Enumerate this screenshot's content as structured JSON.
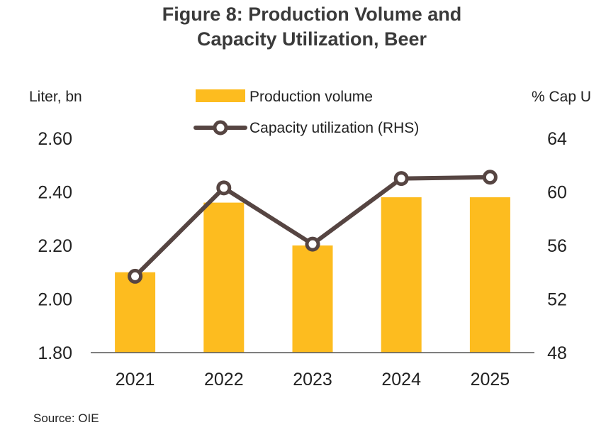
{
  "chart_data": {
    "type": "bar",
    "title_lines": [
      "Figure 8: Production Volume and",
      "Capacity Utilization, Beer"
    ],
    "left_axis_unit": "Liter, bn",
    "right_axis_unit": "% Cap U",
    "categories": [
      "2021",
      "2022",
      "2023",
      "2024",
      "2025"
    ],
    "left_axis": {
      "ylim": [
        1.8,
        2.6
      ],
      "ticks": [
        "1.80",
        "2.00",
        "2.20",
        "2.40",
        "2.60"
      ],
      "tick_values": [
        1.8,
        2.0,
        2.2,
        2.4,
        2.6
      ]
    },
    "right_axis": {
      "ylim": [
        48,
        64
      ],
      "ticks": [
        "48",
        "52",
        "56",
        "60",
        "64"
      ],
      "tick_values": [
        48,
        52,
        56,
        60,
        64
      ]
    },
    "series": [
      {
        "name": "Production volume",
        "kind": "bar",
        "axis": "left",
        "color": "#FDBC1F",
        "values": [
          2.1,
          2.36,
          2.2,
          2.38,
          2.38
        ]
      },
      {
        "name": "Capacity utilization (RHS)",
        "kind": "line",
        "axis": "right",
        "color": "#564542",
        "values": [
          53.7,
          60.3,
          56.1,
          61.0,
          61.1
        ]
      }
    ],
    "grid": false,
    "legend_position": "top-center",
    "source": "Source:  OIE"
  }
}
